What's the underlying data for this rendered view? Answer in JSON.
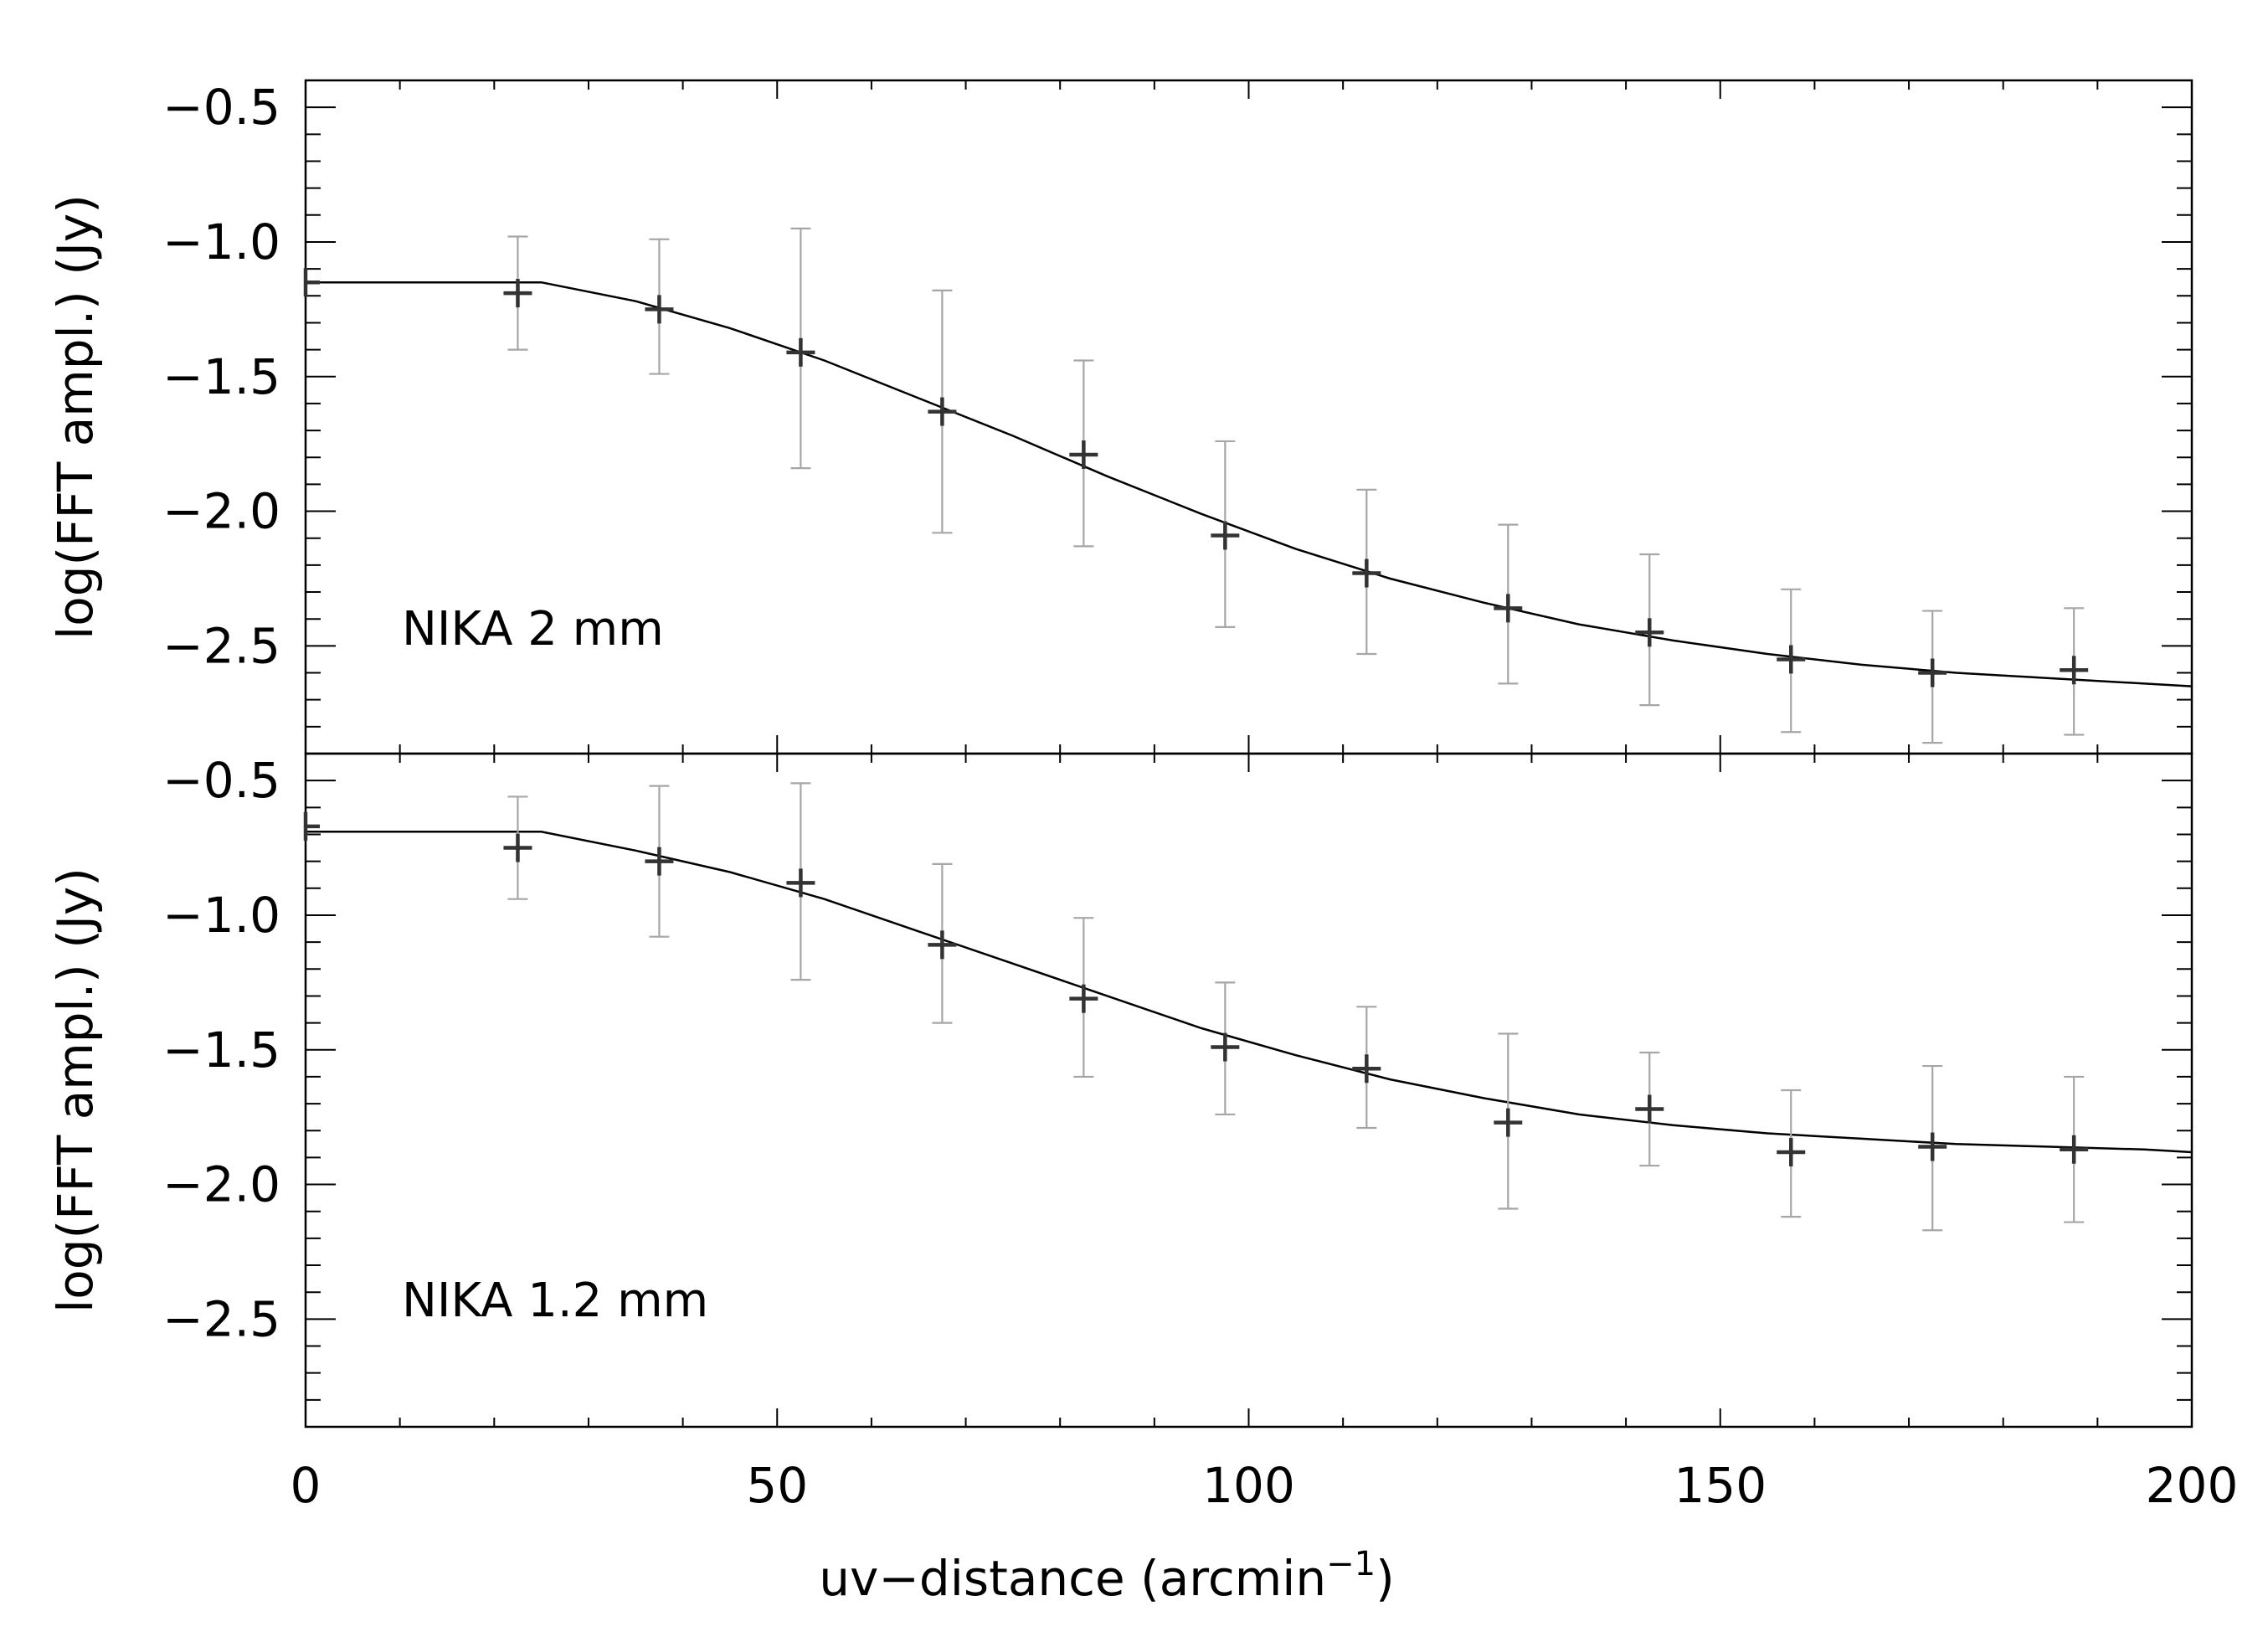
{
  "chart_data": [
    {
      "type": "scatter",
      "panel_label": "NIKA 2 mm",
      "ylabel": "log(FFT ampl.) (Jy)",
      "xlabel": "uv−distance (arcmin",
      "xlabel_sup": "−1",
      "xlabel_tail": ")",
      "xlim": [
        0,
        200
      ],
      "ylim": [
        -2.9,
        -0.4
      ],
      "x_ticks": [
        "0",
        "50",
        "100",
        "150",
        "200"
      ],
      "y_ticks": [
        "−0.5",
        "−1.0",
        "−1.5",
        "−2.0",
        "−2.5"
      ],
      "y_tick_values": [
        -0.5,
        -1.0,
        -1.5,
        -2.0,
        -2.5
      ],
      "points": {
        "x": [
          0,
          22.5,
          37.5,
          52.5,
          67.5,
          82.5,
          97.5,
          112.5,
          127.5,
          142.5,
          157.5,
          172.5,
          187.5
        ],
        "y": [
          -1.15,
          -1.19,
          -1.25,
          -1.41,
          -1.63,
          -1.79,
          -2.09,
          -2.23,
          -2.36,
          -2.45,
          -2.55,
          -2.6,
          -2.59
        ],
        "yerr_low": [
          -1.15,
          -1.4,
          -1.49,
          -1.84,
          -2.08,
          -2.13,
          -2.43,
          -2.53,
          -2.64,
          -2.72,
          -2.82,
          -2.86,
          -2.83
        ],
        "yerr_high": [
          -1.15,
          -0.98,
          -0.99,
          -0.95,
          -1.18,
          -1.44,
          -1.74,
          -1.92,
          -2.05,
          -2.16,
          -2.29,
          -2.37,
          -2.36
        ]
      },
      "model": {
        "x": [
          0,
          25,
          35,
          45,
          55,
          65,
          75,
          85,
          95,
          105,
          115,
          125,
          135,
          145,
          155,
          165,
          175,
          185,
          195,
          200
        ],
        "y": [
          -1.15,
          -1.15,
          -1.22,
          -1.32,
          -1.44,
          -1.58,
          -1.72,
          -1.87,
          -2.01,
          -2.14,
          -2.25,
          -2.34,
          -2.42,
          -2.48,
          -2.53,
          -2.57,
          -2.6,
          -2.62,
          -2.64,
          -2.65
        ]
      }
    },
    {
      "type": "scatter",
      "panel_label": "NIKA 1.2 mm",
      "ylabel": "log(FFT ampl.) (Jy)",
      "xlim": [
        0,
        200
      ],
      "ylim": [
        -2.9,
        -0.4
      ],
      "y_ticks": [
        "−0.5",
        "−1.0",
        "−1.5",
        "−2.0",
        "−2.5"
      ],
      "y_tick_values": [
        -0.5,
        -1.0,
        -1.5,
        -2.0,
        -2.5
      ],
      "points": {
        "x": [
          0,
          22.5,
          37.5,
          52.5,
          67.5,
          82.5,
          97.5,
          112.5,
          127.5,
          142.5,
          157.5,
          172.5,
          187.5
        ],
        "y": [
          -0.67,
          -0.75,
          -0.8,
          -0.88,
          -1.11,
          -1.31,
          -1.49,
          -1.57,
          -1.77,
          -1.72,
          -1.88,
          -1.86,
          -1.87
        ],
        "yerr_low": [
          -0.67,
          -0.94,
          -1.08,
          -1.24,
          -1.4,
          -1.6,
          -1.74,
          -1.79,
          -2.09,
          -1.93,
          -2.12,
          -2.17,
          -2.14
        ],
        "yerr_high": [
          -0.67,
          -0.56,
          -0.52,
          -0.51,
          -0.81,
          -1.01,
          -1.25,
          -1.34,
          -1.44,
          -1.51,
          -1.65,
          -1.56,
          -1.6
        ]
      },
      "model": {
        "x": [
          0,
          25,
          35,
          45,
          55,
          65,
          75,
          85,
          95,
          105,
          115,
          125,
          135,
          145,
          155,
          165,
          175,
          185,
          195,
          200
        ],
        "y": [
          -0.69,
          -0.69,
          -0.76,
          -0.84,
          -0.94,
          -1.06,
          -1.18,
          -1.3,
          -1.42,
          -1.52,
          -1.61,
          -1.68,
          -1.74,
          -1.78,
          -1.81,
          -1.83,
          -1.85,
          -1.86,
          -1.87,
          -1.88
        ]
      }
    }
  ]
}
